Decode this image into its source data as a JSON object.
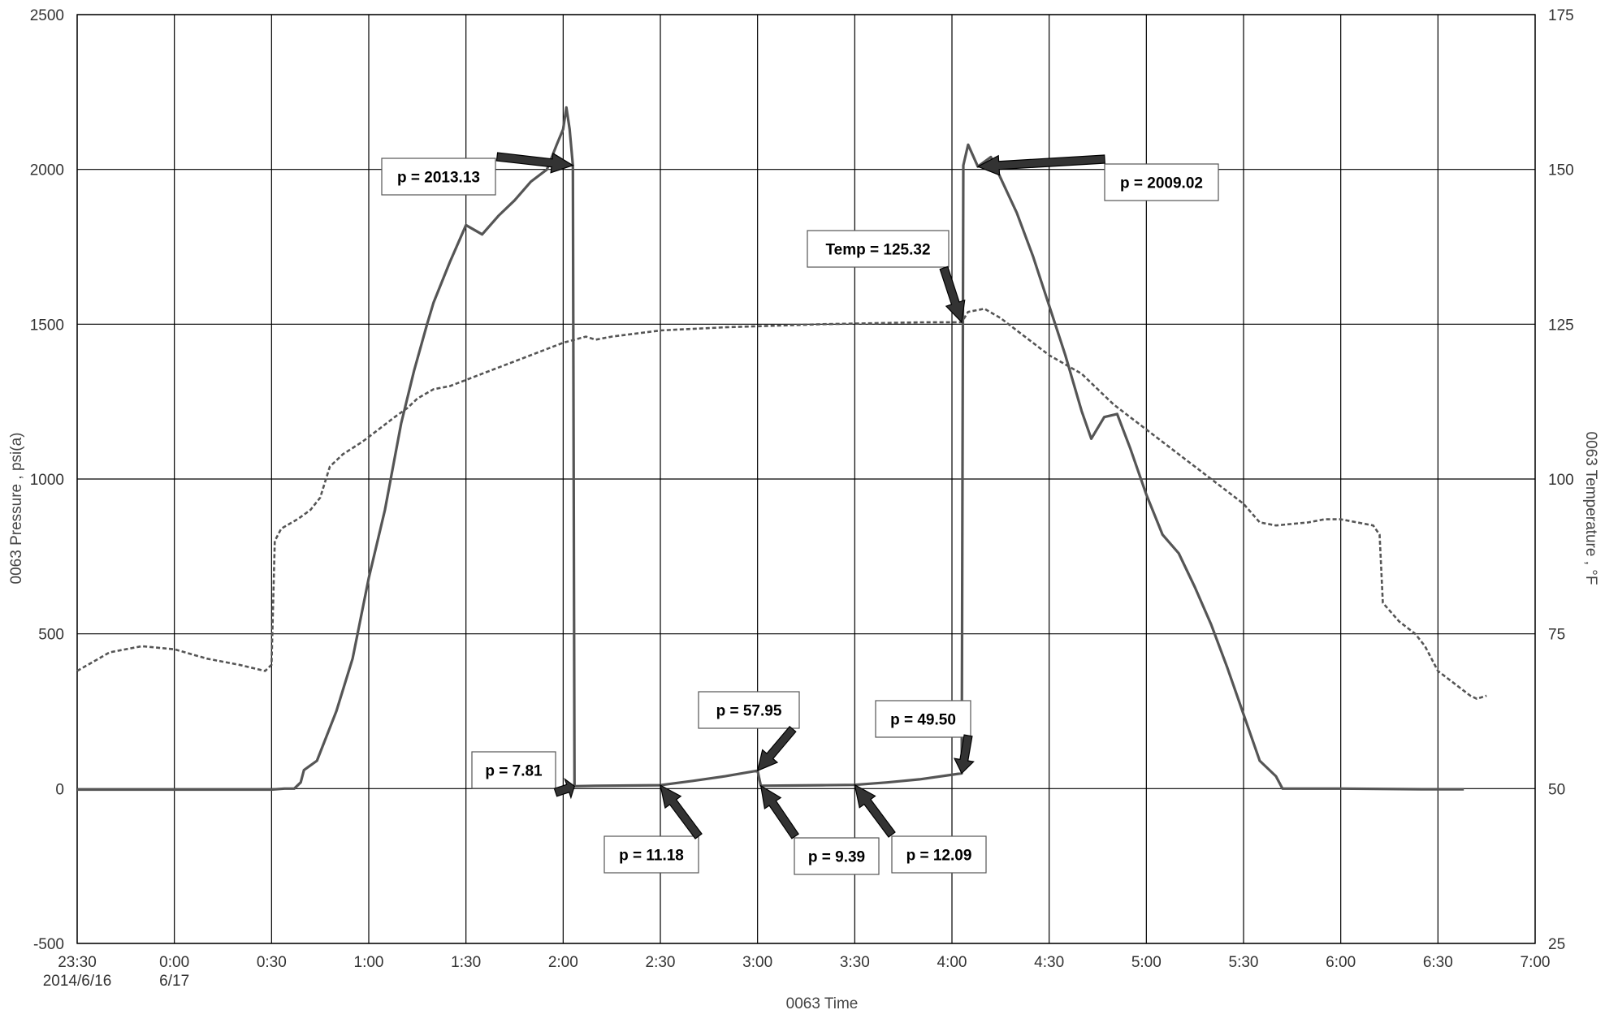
{
  "chart_data": {
    "type": "line",
    "xlabel": "0063 Time",
    "ylabel_left": "0063 Pressure , psi(a)",
    "ylabel_right": "0063 Temperature , °F",
    "y_left_range": [
      -500,
      2500
    ],
    "y_right_range": [
      25,
      175
    ],
    "x_range_minutes": [
      -30,
      420
    ],
    "y_left_ticks": [
      "-500",
      "0",
      "500",
      "1000",
      "1500",
      "2000",
      "2500"
    ],
    "y_right_ticks": [
      "25",
      "50",
      "75",
      "100",
      "125",
      "150",
      "175"
    ],
    "x_ticks": [
      {
        "minute": -30,
        "label": "23:30",
        "sublabel": "2014/6/16"
      },
      {
        "minute": 0,
        "label": "0:00",
        "sublabel": "6/17"
      },
      {
        "minute": 30,
        "label": "0:30",
        "sublabel": ""
      },
      {
        "minute": 60,
        "label": "1:00",
        "sublabel": ""
      },
      {
        "minute": 90,
        "label": "1:30",
        "sublabel": ""
      },
      {
        "minute": 120,
        "label": "2:00",
        "sublabel": ""
      },
      {
        "minute": 150,
        "label": "2:30",
        "sublabel": ""
      },
      {
        "minute": 180,
        "label": "3:00",
        "sublabel": ""
      },
      {
        "minute": 210,
        "label": "3:30",
        "sublabel": ""
      },
      {
        "minute": 240,
        "label": "4:00",
        "sublabel": ""
      },
      {
        "minute": 270,
        "label": "4:30",
        "sublabel": ""
      },
      {
        "minute": 300,
        "label": "5:00",
        "sublabel": ""
      },
      {
        "minute": 330,
        "label": "5:30",
        "sublabel": ""
      },
      {
        "minute": 360,
        "label": "6:00",
        "sublabel": ""
      },
      {
        "minute": 390,
        "label": "6:30",
        "sublabel": ""
      },
      {
        "minute": 420,
        "label": "7:00",
        "sublabel": ""
      }
    ],
    "grid": true,
    "series": [
      {
        "axis": "left",
        "style": "solid",
        "color": "#555555",
        "points": [
          [
            -30,
            -3
          ],
          [
            30,
            -3
          ],
          [
            34,
            0
          ],
          [
            37,
            0
          ],
          [
            39,
            20
          ],
          [
            40,
            60
          ],
          [
            44,
            90
          ],
          [
            50,
            250
          ],
          [
            55,
            420
          ],
          [
            60,
            680
          ],
          [
            65,
            900
          ],
          [
            70,
            1180
          ],
          [
            74,
            1350
          ],
          [
            78,
            1500
          ],
          [
            80,
            1570
          ],
          [
            85,
            1700
          ],
          [
            90,
            1820
          ],
          [
            95,
            1790
          ],
          [
            100,
            1850
          ],
          [
            105,
            1900
          ],
          [
            110,
            1960
          ],
          [
            115,
            2000
          ],
          [
            118,
            2080
          ],
          [
            120,
            2130
          ],
          [
            121,
            2200
          ],
          [
            122,
            2130
          ],
          [
            123,
            2013
          ],
          [
            123.5,
            7.81
          ],
          [
            130,
            9
          ],
          [
            140,
            10
          ],
          [
            150,
            11.18
          ],
          [
            160,
            25
          ],
          [
            170,
            40
          ],
          [
            180,
            57.95
          ],
          [
            181,
            9.39
          ],
          [
            190,
            10
          ],
          [
            200,
            11
          ],
          [
            210,
            12.09
          ],
          [
            220,
            20
          ],
          [
            230,
            30
          ],
          [
            243,
            49.5
          ],
          [
            243.5,
            2013
          ],
          [
            245,
            2080
          ],
          [
            248,
            2009.02
          ],
          [
            252,
            2040
          ],
          [
            256,
            1950
          ],
          [
            260,
            1860
          ],
          [
            265,
            1720
          ],
          [
            270,
            1560
          ],
          [
            275,
            1400
          ],
          [
            280,
            1220
          ],
          [
            283,
            1130
          ],
          [
            287,
            1200
          ],
          [
            291,
            1210
          ],
          [
            295,
            1100
          ],
          [
            300,
            950
          ],
          [
            305,
            820
          ],
          [
            310,
            760
          ],
          [
            315,
            650
          ],
          [
            320,
            530
          ],
          [
            325,
            390
          ],
          [
            330,
            240
          ],
          [
            335,
            90
          ],
          [
            340,
            40
          ],
          [
            342,
            0
          ],
          [
            360,
            0
          ],
          [
            385,
            -2
          ],
          [
            398,
            -2
          ]
        ]
      },
      {
        "axis": "right",
        "style": "dashed",
        "color": "#555555",
        "points": [
          [
            -30,
            69
          ],
          [
            -20,
            72
          ],
          [
            -10,
            73
          ],
          [
            0,
            72.5
          ],
          [
            10,
            71
          ],
          [
            20,
            70
          ],
          [
            28,
            69
          ],
          [
            30,
            70
          ],
          [
            31,
            90
          ],
          [
            33,
            92
          ],
          [
            38,
            93.5
          ],
          [
            42,
            95
          ],
          [
            45,
            97
          ],
          [
            48,
            102
          ],
          [
            52,
            104
          ],
          [
            58,
            106
          ],
          [
            63,
            108
          ],
          [
            68,
            110
          ],
          [
            72,
            111.5
          ],
          [
            75,
            113
          ],
          [
            80,
            114.5
          ],
          [
            85,
            115
          ],
          [
            90,
            116
          ],
          [
            95,
            117
          ],
          [
            100,
            118
          ],
          [
            110,
            120
          ],
          [
            120,
            122
          ],
          [
            127,
            123
          ],
          [
            130,
            122.5
          ],
          [
            135,
            123
          ],
          [
            150,
            124
          ],
          [
            170,
            124.5
          ],
          [
            200,
            125
          ],
          [
            230,
            125.3
          ],
          [
            243,
            125.32
          ],
          [
            245,
            127
          ],
          [
            250,
            127.5
          ],
          [
            255,
            126
          ],
          [
            260,
            124
          ],
          [
            265,
            122
          ],
          [
            270,
            120
          ],
          [
            280,
            117
          ],
          [
            290,
            112
          ],
          [
            300,
            108
          ],
          [
            310,
            104
          ],
          [
            320,
            100
          ],
          [
            330,
            96
          ],
          [
            335,
            93
          ],
          [
            340,
            92.5
          ],
          [
            350,
            93
          ],
          [
            355,
            93.5
          ],
          [
            360,
            93.5
          ],
          [
            365,
            93
          ],
          [
            370,
            92.5
          ],
          [
            372,
            91
          ],
          [
            373,
            80
          ],
          [
            378,
            77
          ],
          [
            383,
            75
          ],
          [
            386,
            73
          ],
          [
            390,
            69
          ],
          [
            395,
            67
          ],
          [
            400,
            65
          ],
          [
            402,
            64.5
          ],
          [
            405,
            65
          ]
        ]
      }
    ],
    "annotations": [
      {
        "label": "p = 2013.13",
        "series": 0,
        "point": [
          123,
          2013
        ]
      },
      {
        "label": "p = 2009.02",
        "series": 0,
        "point": [
          248,
          2009
        ]
      },
      {
        "label": "Temp = 125.32",
        "series": 1,
        "point": [
          243,
          125.32
        ]
      },
      {
        "label": "p = 57.95",
        "series": 0,
        "point": [
          180,
          57.95
        ]
      },
      {
        "label": "p = 49.50",
        "series": 0,
        "point": [
          243,
          49.5
        ]
      },
      {
        "label": "p = 7.81",
        "series": 0,
        "point": [
          123.5,
          7.81
        ]
      },
      {
        "label": "p = 11.18",
        "series": 0,
        "point": [
          150,
          11.18
        ]
      },
      {
        "label": "p = 9.39",
        "series": 0,
        "point": [
          181,
          9.39
        ]
      },
      {
        "label": "p = 12.09",
        "series": 0,
        "point": [
          210,
          12.09
        ]
      }
    ]
  }
}
